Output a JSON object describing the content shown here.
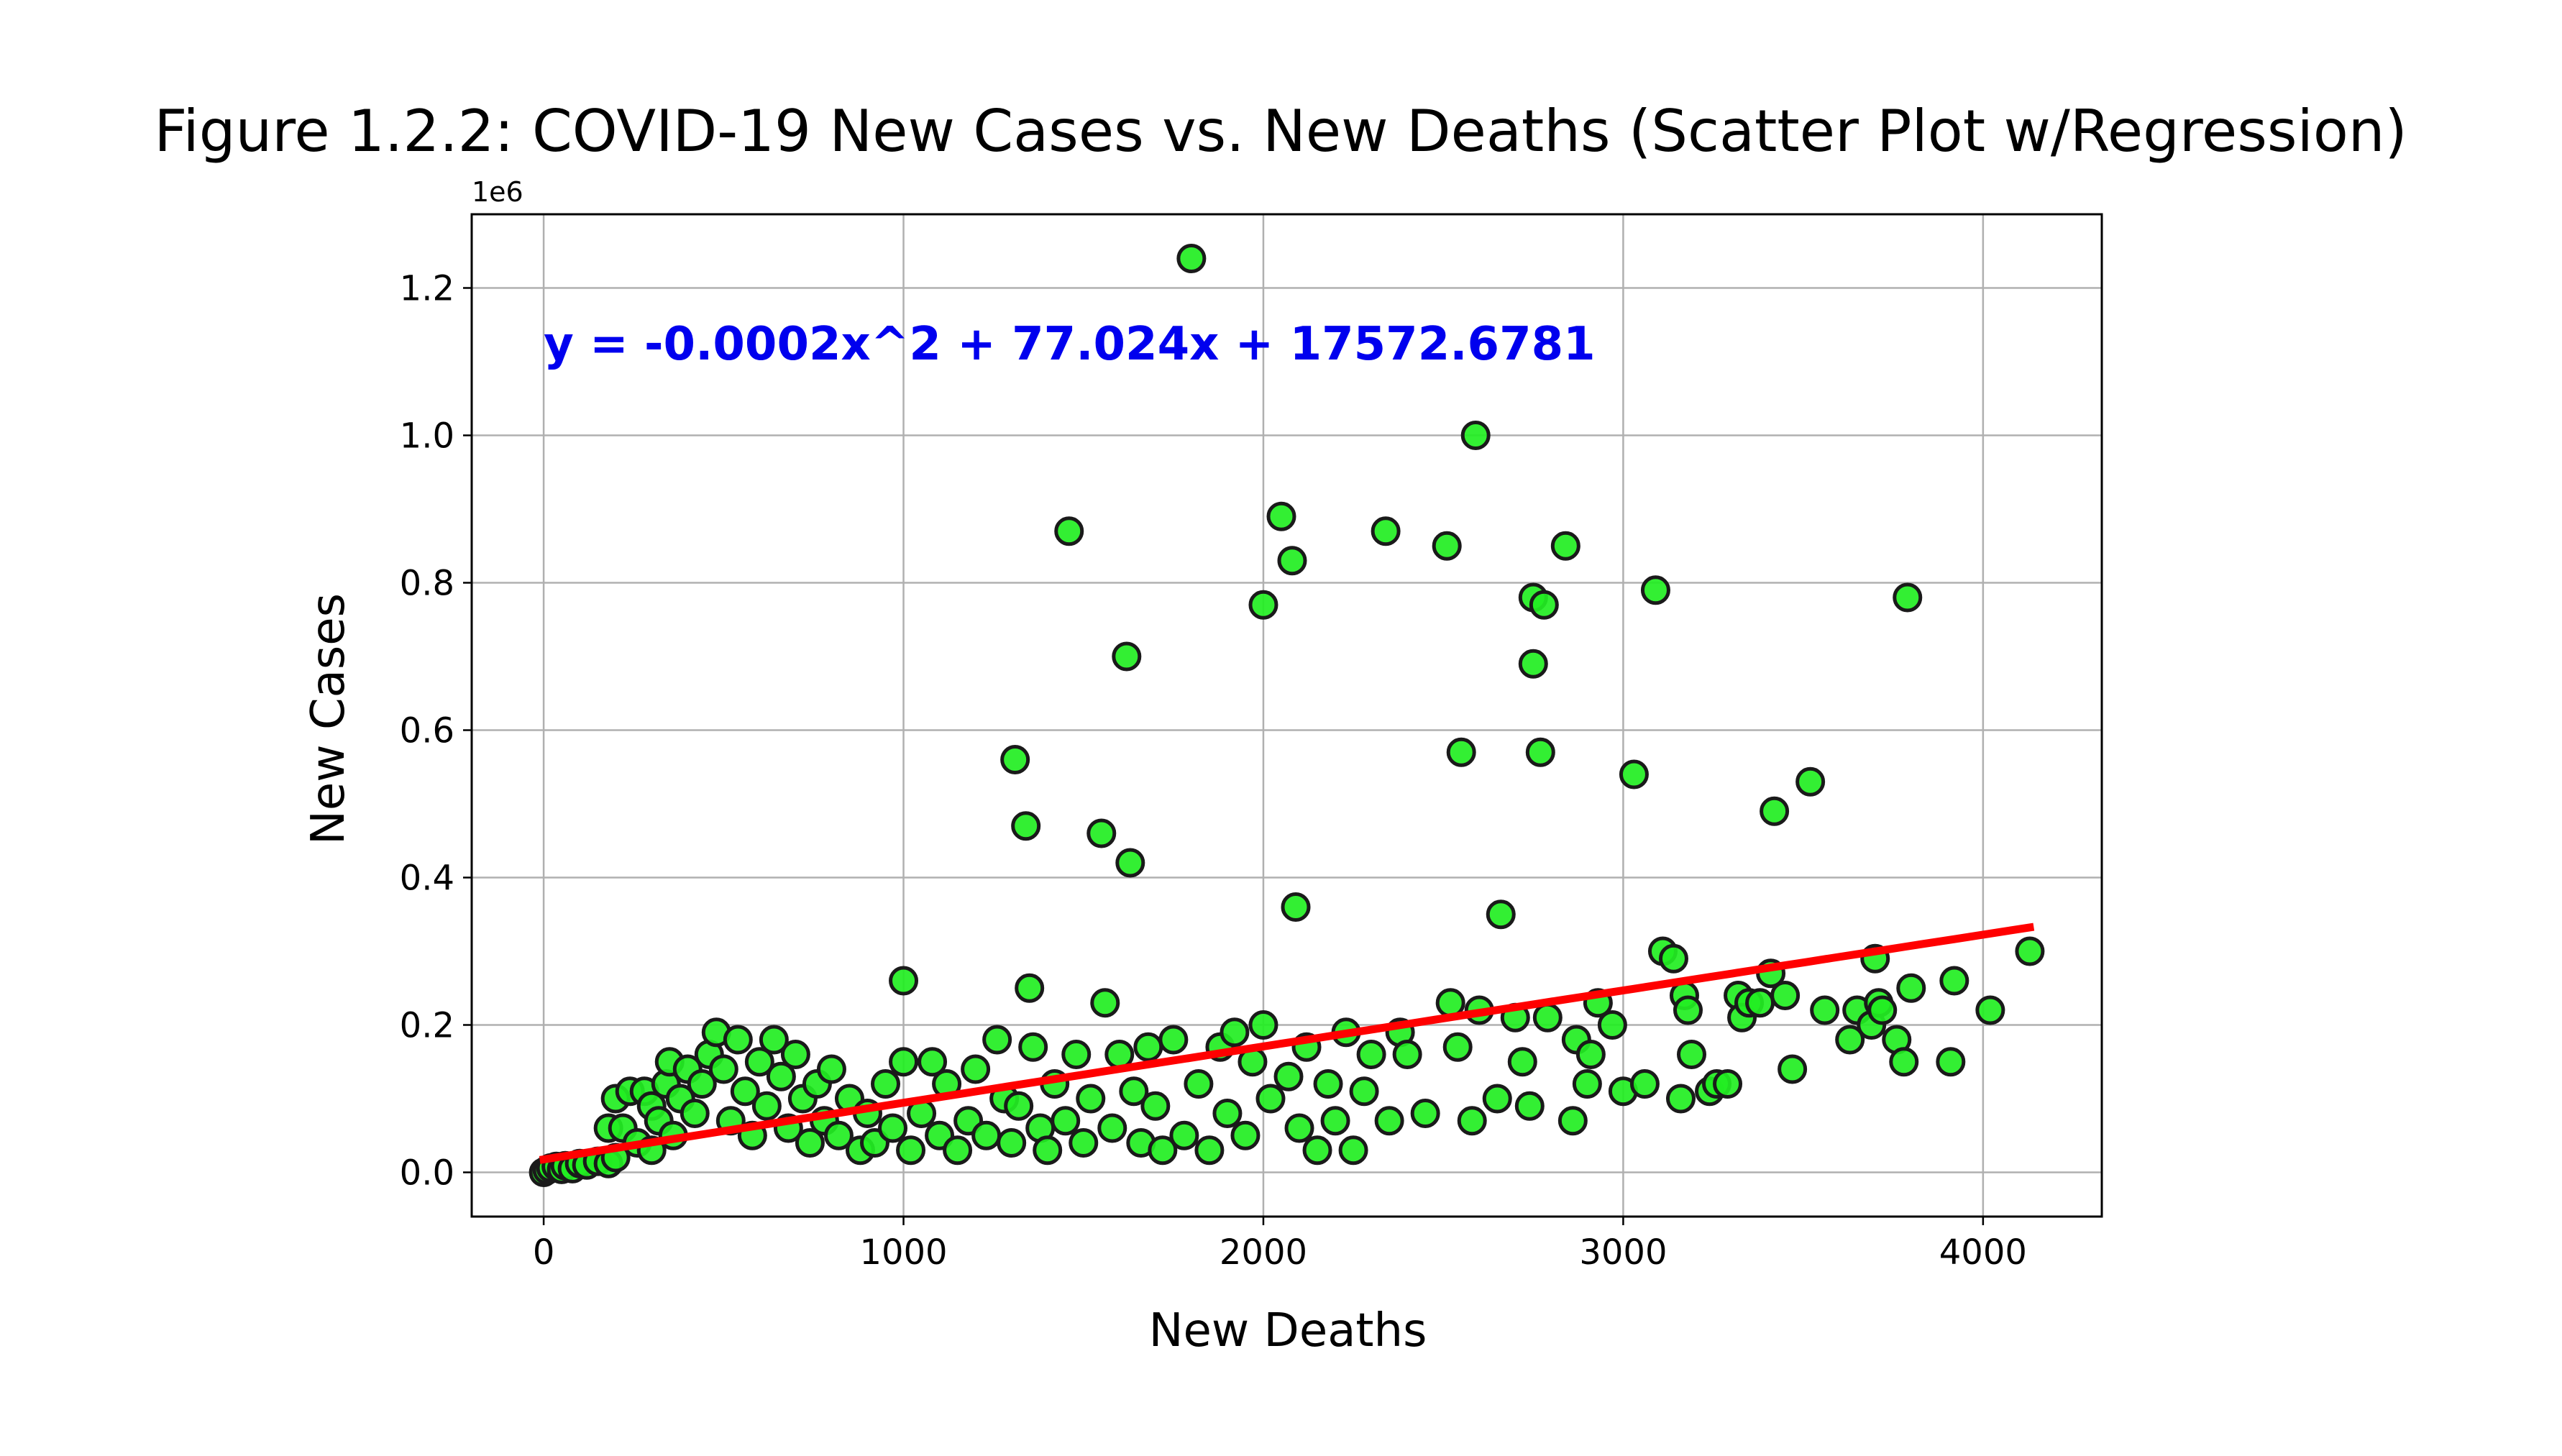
{
  "chart_data": {
    "type": "scatter",
    "title": "Figure 1.2.2: COVID-19 New Cases vs. New Deaths (Scatter Plot w/Regression)",
    "xlabel": "New Deaths",
    "ylabel": "New Cases",
    "y_offset_label": "1e6",
    "xlim": [
      -200,
      4330
    ],
    "ylim": [
      -0.06,
      1.3
    ],
    "xticks": [
      0,
      1000,
      2000,
      3000,
      4000
    ],
    "xtick_labels": [
      "0",
      "1000",
      "2000",
      "3000",
      "4000"
    ],
    "yticks": [
      0.0,
      0.2,
      0.4,
      0.6,
      0.8,
      1.0,
      1.2
    ],
    "ytick_labels": [
      "0.0",
      "0.2",
      "0.4",
      "0.6",
      "0.8",
      "1.0",
      "1.2"
    ],
    "grid": true,
    "y_unit_note": "y values in units of 1e6",
    "marker_color": "#22ee22",
    "marker_edge": "#1a1a1a",
    "regression": {
      "equation": "y = -0.0002x^2 + 77.024x + 17572.6781",
      "a": -0.0002,
      "b": 77.024,
      "c": 17572.6781,
      "x_range": [
        0,
        4130
      ],
      "color": "#ff0000",
      "equation_color": "#0000ee"
    },
    "series": [
      {
        "points": [
          [
            0,
            0.0
          ],
          [
            10,
            0.003
          ],
          [
            20,
            0.006
          ],
          [
            35,
            0.008
          ],
          [
            50,
            0.004
          ],
          [
            60,
            0.009
          ],
          [
            80,
            0.005
          ],
          [
            100,
            0.012
          ],
          [
            120,
            0.01
          ],
          [
            150,
            0.015
          ],
          [
            180,
            0.012
          ],
          [
            200,
            0.02
          ],
          [
            180,
            0.06
          ],
          [
            200,
            0.1
          ],
          [
            220,
            0.06
          ],
          [
            240,
            0.11
          ],
          [
            260,
            0.04
          ],
          [
            280,
            0.11
          ],
          [
            300,
            0.09
          ],
          [
            300,
            0.03
          ],
          [
            320,
            0.07
          ],
          [
            340,
            0.12
          ],
          [
            350,
            0.15
          ],
          [
            360,
            0.05
          ],
          [
            380,
            0.1
          ],
          [
            400,
            0.14
          ],
          [
            420,
            0.08
          ],
          [
            440,
            0.12
          ],
          [
            460,
            0.16
          ],
          [
            480,
            0.19
          ],
          [
            500,
            0.14
          ],
          [
            520,
            0.07
          ],
          [
            540,
            0.18
          ],
          [
            560,
            0.11
          ],
          [
            580,
            0.05
          ],
          [
            600,
            0.15
          ],
          [
            620,
            0.09
          ],
          [
            640,
            0.18
          ],
          [
            660,
            0.13
          ],
          [
            680,
            0.06
          ],
          [
            700,
            0.16
          ],
          [
            720,
            0.1
          ],
          [
            740,
            0.04
          ],
          [
            760,
            0.12
          ],
          [
            780,
            0.07
          ],
          [
            800,
            0.14
          ],
          [
            820,
            0.05
          ],
          [
            850,
            0.1
          ],
          [
            880,
            0.03
          ],
          [
            900,
            0.08
          ],
          [
            920,
            0.04
          ],
          [
            950,
            0.12
          ],
          [
            970,
            0.06
          ],
          [
            1000,
            0.26
          ],
          [
            1000,
            0.15
          ],
          [
            1020,
            0.03
          ],
          [
            1050,
            0.08
          ],
          [
            1080,
            0.15
          ],
          [
            1100,
            0.05
          ],
          [
            1120,
            0.12
          ],
          [
            1150,
            0.03
          ],
          [
            1180,
            0.07
          ],
          [
            1200,
            0.14
          ],
          [
            1230,
            0.05
          ],
          [
            1260,
            0.18
          ],
          [
            1280,
            0.1
          ],
          [
            1300,
            0.04
          ],
          [
            1310,
            0.56
          ],
          [
            1320,
            0.09
          ],
          [
            1340,
            0.47
          ],
          [
            1350,
            0.25
          ],
          [
            1360,
            0.17
          ],
          [
            1380,
            0.06
          ],
          [
            1400,
            0.03
          ],
          [
            1420,
            0.12
          ],
          [
            1450,
            0.07
          ],
          [
            1460,
            0.87
          ],
          [
            1480,
            0.16
          ],
          [
            1500,
            0.04
          ],
          [
            1520,
            0.1
          ],
          [
            1550,
            0.46
          ],
          [
            1560,
            0.23
          ],
          [
            1580,
            0.06
          ],
          [
            1600,
            0.16
          ],
          [
            1620,
            0.7
          ],
          [
            1630,
            0.42
          ],
          [
            1640,
            0.11
          ],
          [
            1660,
            0.04
          ],
          [
            1680,
            0.17
          ],
          [
            1700,
            0.09
          ],
          [
            1720,
            0.03
          ],
          [
            1750,
            0.18
          ],
          [
            1780,
            0.05
          ],
          [
            1800,
            1.24
          ],
          [
            1820,
            0.12
          ],
          [
            1850,
            0.03
          ],
          [
            1880,
            0.17
          ],
          [
            1900,
            0.08
          ],
          [
            1920,
            0.19
          ],
          [
            1950,
            0.05
          ],
          [
            1970,
            0.15
          ],
          [
            2000,
            0.77
          ],
          [
            2000,
            0.2
          ],
          [
            2020,
            0.1
          ],
          [
            2050,
            0.89
          ],
          [
            2070,
            0.13
          ],
          [
            2080,
            0.83
          ],
          [
            2090,
            0.36
          ],
          [
            2100,
            0.06
          ],
          [
            2120,
            0.17
          ],
          [
            2150,
            0.03
          ],
          [
            2180,
            0.12
          ],
          [
            2200,
            0.07
          ],
          [
            2230,
            0.19
          ],
          [
            2250,
            0.03
          ],
          [
            2280,
            0.11
          ],
          [
            2300,
            0.16
          ],
          [
            2340,
            0.87
          ],
          [
            2350,
            0.07
          ],
          [
            2380,
            0.19
          ],
          [
            2400,
            0.16
          ],
          [
            2450,
            0.08
          ],
          [
            2510,
            0.85
          ],
          [
            2520,
            0.23
          ],
          [
            2540,
            0.17
          ],
          [
            2550,
            0.57
          ],
          [
            2580,
            0.07
          ],
          [
            2590,
            1.0
          ],
          [
            2600,
            0.22
          ],
          [
            2650,
            0.1
          ],
          [
            2660,
            0.35
          ],
          [
            2700,
            0.21
          ],
          [
            2720,
            0.15
          ],
          [
            2740,
            0.09
          ],
          [
            2750,
            0.78
          ],
          [
            2750,
            0.69
          ],
          [
            2770,
            0.57
          ],
          [
            2780,
            0.77
          ],
          [
            2790,
            0.21
          ],
          [
            2840,
            0.85
          ],
          [
            2860,
            0.07
          ],
          [
            2870,
            0.18
          ],
          [
            2900,
            0.12
          ],
          [
            2910,
            0.16
          ],
          [
            2930,
            0.23
          ],
          [
            2970,
            0.2
          ],
          [
            3000,
            0.11
          ],
          [
            3030,
            0.54
          ],
          [
            3060,
            0.12
          ],
          [
            3090,
            0.79
          ],
          [
            3110,
            0.3
          ],
          [
            3140,
            0.29
          ],
          [
            3160,
            0.1
          ],
          [
            3170,
            0.24
          ],
          [
            3180,
            0.22
          ],
          [
            3190,
            0.16
          ],
          [
            3240,
            0.11
          ],
          [
            3260,
            0.12
          ],
          [
            3290,
            0.12
          ],
          [
            3320,
            0.24
          ],
          [
            3330,
            0.21
          ],
          [
            3350,
            0.23
          ],
          [
            3380,
            0.23
          ],
          [
            3410,
            0.27
          ],
          [
            3420,
            0.49
          ],
          [
            3450,
            0.24
          ],
          [
            3470,
            0.14
          ],
          [
            3520,
            0.53
          ],
          [
            3560,
            0.22
          ],
          [
            3630,
            0.18
          ],
          [
            3650,
            0.22
          ],
          [
            3690,
            0.2
          ],
          [
            3700,
            0.29
          ],
          [
            3710,
            0.23
          ],
          [
            3720,
            0.22
          ],
          [
            3760,
            0.18
          ],
          [
            3780,
            0.15
          ],
          [
            3790,
            0.78
          ],
          [
            3800,
            0.25
          ],
          [
            3910,
            0.15
          ],
          [
            3920,
            0.26
          ],
          [
            4020,
            0.22
          ],
          [
            4130,
            0.3
          ]
        ]
      }
    ]
  }
}
